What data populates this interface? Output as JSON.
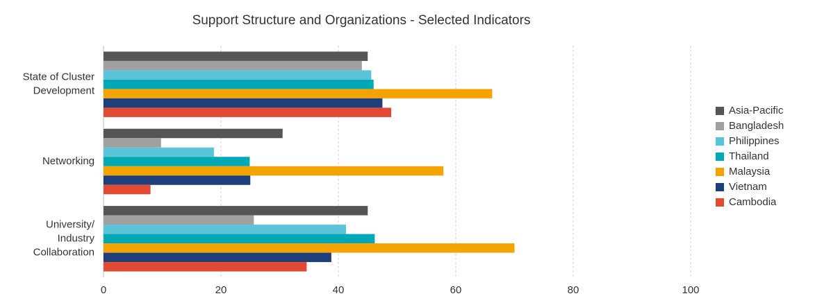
{
  "chart_data": {
    "type": "bar",
    "orientation": "horizontal",
    "title": "Support Structure and Organizations - Selected Indicators",
    "categories": [
      "State of Cluster\nDevelopment",
      "Networking",
      "University/\nIndustry\nCollaboration"
    ],
    "series": [
      {
        "name": "Asia-Pacific",
        "color": "#555555",
        "values": [
          45,
          30.5,
          45
        ]
      },
      {
        "name": "Bangladesh",
        "color": "#a0a0a0",
        "values": [
          44,
          9.8,
          25.6
        ]
      },
      {
        "name": "Philippines",
        "color": "#5bc4d9",
        "values": [
          45.6,
          18.8,
          41.3
        ]
      },
      {
        "name": "Thailand",
        "color": "#00a9b5",
        "values": [
          46,
          24.9,
          46.2
        ]
      },
      {
        "name": "Malaysia",
        "color": "#f5a300",
        "values": [
          66.2,
          57.9,
          70
        ]
      },
      {
        "name": "Vietnam",
        "color": "#1f3f7a",
        "values": [
          47.5,
          25,
          38.8
        ]
      },
      {
        "name": "Cambodia",
        "color": "#e04a32",
        "values": [
          49,
          8,
          34.6
        ]
      }
    ],
    "xlim": [
      0,
      100
    ],
    "xticks": [
      0,
      20,
      40,
      60,
      80,
      100
    ],
    "grid": true,
    "legend": "right"
  }
}
